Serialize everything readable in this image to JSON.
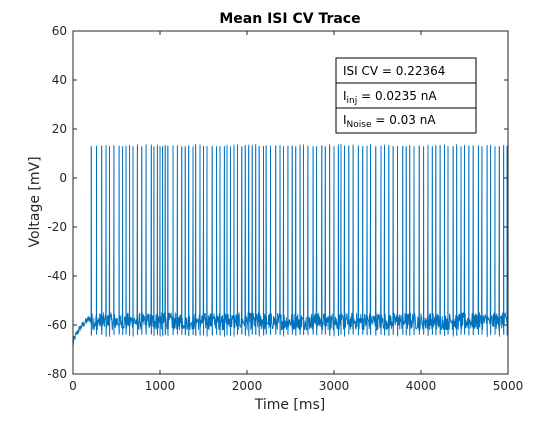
{
  "chart_data": {
    "type": "line",
    "title": "Mean ISI CV Trace",
    "xlabel": "Time [ms]",
    "ylabel": "Voltage [mV]",
    "xlim": [
      0,
      5000
    ],
    "ylim": [
      -80,
      60
    ],
    "xticks": [
      0,
      1000,
      2000,
      3000,
      4000,
      5000
    ],
    "yticks": [
      -80,
      -60,
      -40,
      -20,
      0,
      20,
      40,
      60
    ],
    "grid": false,
    "series": [
      {
        "color": "#0072BD",
        "start_value": -69,
        "baseline_min": -62,
        "baseline_max": -55,
        "spike_peak": 13,
        "spike_trough": -64,
        "spike_times": [
          210,
          270,
          330,
          380,
          420,
          470,
          530,
          570,
          610,
          650,
          690,
          740,
          790,
          840,
          900,
          930,
          970,
          1000,
          1030,
          1060,
          1090,
          1150,
          1200,
          1250,
          1290,
          1330,
          1380,
          1410,
          1460,
          1500,
          1540,
          1600,
          1650,
          1690,
          1740,
          1770,
          1810,
          1850,
          1890,
          1940,
          1980,
          2020,
          2060,
          2100,
          2140,
          2190,
          2220,
          2270,
          2330,
          2380,
          2420,
          2470,
          2520,
          2560,
          2610,
          2650,
          2700,
          2760,
          2800,
          2860,
          2900,
          2950,
          3000,
          3050,
          3080,
          3120,
          3170,
          3220,
          3280,
          3330,
          3380,
          3420,
          3480,
          3540,
          3580,
          3630,
          3680,
          3730,
          3790,
          3830,
          3870,
          3920,
          3980,
          4030,
          4080,
          4130,
          4170,
          4220,
          4270,
          4310,
          4370,
          4410,
          4460,
          4500,
          4550,
          4600,
          4660,
          4700,
          4760,
          4800,
          4850,
          4900,
          4950,
          4990
        ]
      }
    ],
    "annotation": {
      "lines": [
        {
          "main": "ISI CV = 0.22364",
          "sub": "",
          "rest": ""
        },
        {
          "main": "I",
          "sub": "inj",
          "rest": " = 0.0235 nA"
        },
        {
          "main": "I",
          "sub": "Noise",
          "rest": " = 0.03 nA"
        }
      ],
      "placement": "top-right"
    }
  }
}
